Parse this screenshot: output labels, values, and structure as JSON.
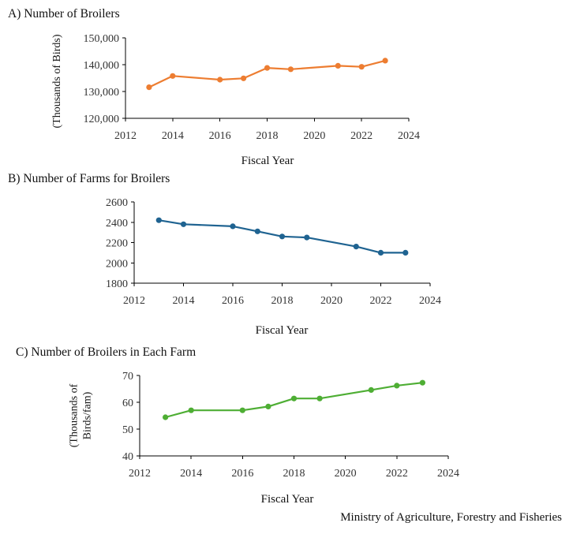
{
  "chart_data": [
    {
      "type": "line",
      "title": "A) Number of Broilers",
      "xlabel": "Fiscal Year",
      "ylabel": "(Thousands of Birds)",
      "xlim": [
        2012,
        2024
      ],
      "xticks": [
        "2012",
        "2014",
        "2016",
        "2018",
        "2020",
        "2022",
        "2024"
      ],
      "ylim": [
        120000,
        150000
      ],
      "yticks": [
        "120,000",
        "130,000",
        "140,000",
        "150,000"
      ],
      "grid": false,
      "x": [
        2013,
        2014,
        2016,
        2017,
        2018,
        2019,
        2021,
        2022,
        2023
      ],
      "series": [
        {
          "color": "#ED7D31",
          "values": [
            131600,
            135800,
            134400,
            134900,
            138800,
            138300,
            139600,
            139200,
            141500
          ]
        }
      ]
    },
    {
      "type": "line",
      "title": "B) Number of Farms for Broilers",
      "xlabel": "Fiscal Year",
      "ylabel": "",
      "xlim": [
        2012,
        2024
      ],
      "xticks": [
        "2012",
        "2014",
        "2016",
        "2018",
        "2020",
        "2022",
        "2024"
      ],
      "ylim": [
        1800,
        2600
      ],
      "yticks": [
        "1800",
        "2000",
        "2200",
        "2400",
        "2600"
      ],
      "grid": false,
      "x": [
        2013,
        2014,
        2016,
        2017,
        2018,
        2019,
        2021,
        2022,
        2023
      ],
      "series": [
        {
          "color": "#1F6391",
          "values": [
            2420,
            2380,
            2360,
            2310,
            2260,
            2250,
            2160,
            2100,
            2100
          ]
        }
      ]
    },
    {
      "type": "line",
      "title": "C) Number of Broilers  in Each Farm",
      "xlabel": "Fiscal Year",
      "ylabel": [
        "(Thousands of",
        "Birds/fam)"
      ],
      "xlim": [
        2012,
        2024
      ],
      "xticks": [
        "2012",
        "2014",
        "2016",
        "2018",
        "2020",
        "2022",
        "2024"
      ],
      "ylim": [
        40,
        70
      ],
      "yticks": [
        "40",
        "50",
        "60",
        "70"
      ],
      "grid": false,
      "x": [
        2013,
        2014,
        2016,
        2017,
        2018,
        2019,
        2021,
        2022,
        2023
      ],
      "series": [
        {
          "color": "#4EAE34",
          "values": [
            54.4,
            57.0,
            57.0,
            58.4,
            61.4,
            61.4,
            64.6,
            66.2,
            67.3
          ]
        }
      ]
    }
  ],
  "source": "Ministry  of Agriculture,  Forestry and Fisheries"
}
